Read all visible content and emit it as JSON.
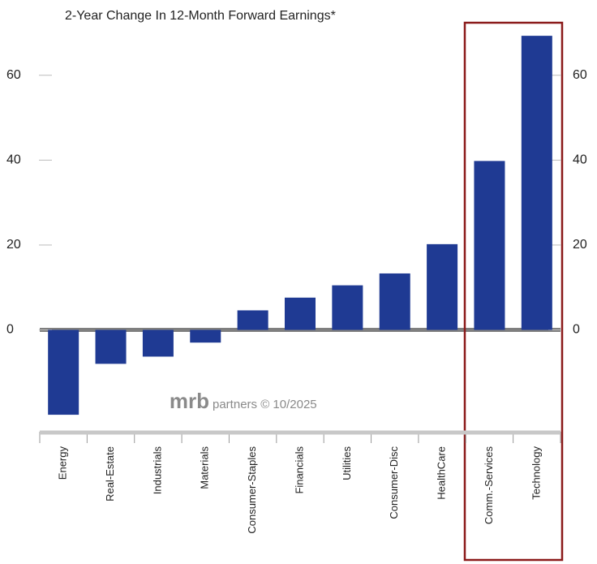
{
  "chart_data": {
    "type": "bar",
    "title": "2-Year Change In 12-Month Forward Earnings*",
    "categories": [
      "Energy",
      "Real-Estate",
      "Industrials",
      "Materials",
      "Consumer-Staples",
      "Financials",
      "Utilities",
      "Consumer-Disc",
      "HealthCare",
      "Comm.-Services",
      "Technology"
    ],
    "values": [
      -20,
      -8,
      -6.3,
      -3,
      4.6,
      7.6,
      10.5,
      13.3,
      20.2,
      39.8,
      69.3
    ],
    "color": "#1f3a93",
    "ylim": [
      -24,
      72
    ],
    "yticks": [
      0,
      20,
      40,
      60
    ],
    "annotations": [
      "mrb",
      "partners © 10/2025"
    ]
  }
}
